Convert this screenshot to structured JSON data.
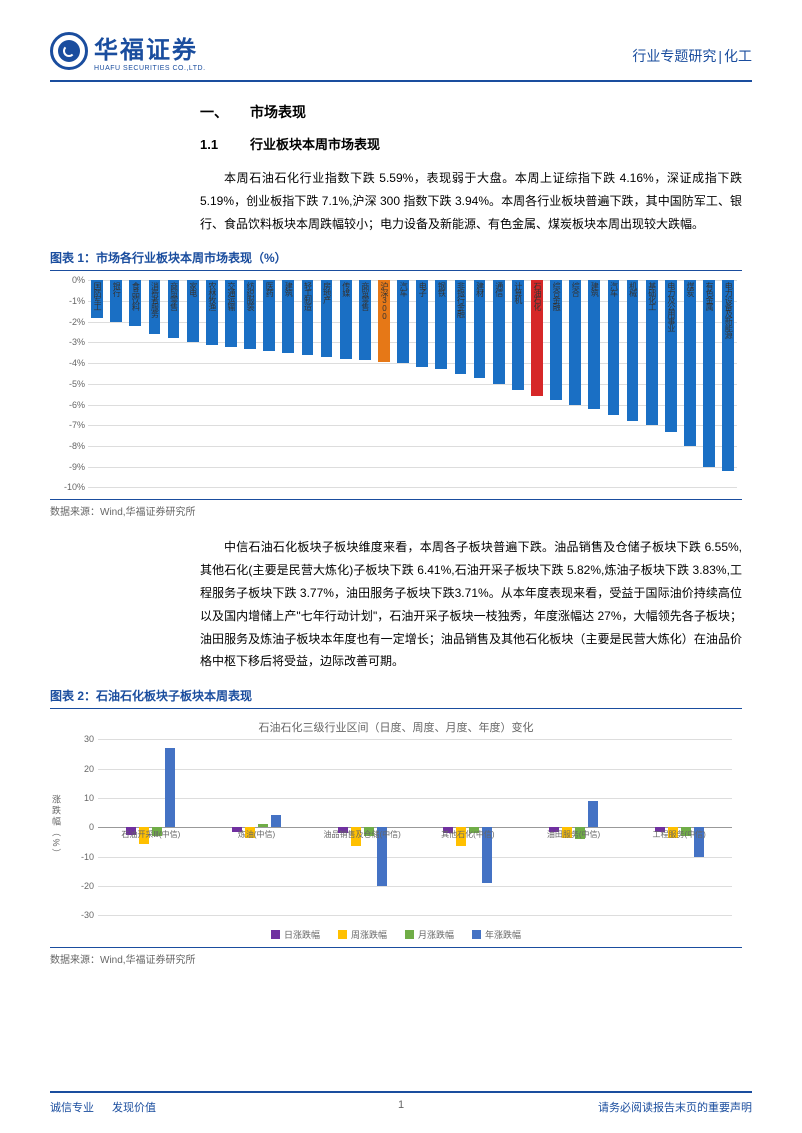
{
  "header": {
    "logo_cn": "华福证券",
    "logo_en": "HUAFU SECURITIES CO.,LTD.",
    "right_text_1": "行业专题研究",
    "right_text_2": "化工"
  },
  "section1": {
    "num": "一、",
    "title": "市场表现"
  },
  "section1_1": {
    "num": "1.1",
    "title": "行业板块本周市场表现"
  },
  "para1": "本周石油石化行业指数下跌 5.59%，表现弱于大盘。本周上证综指下跌 4.16%，深证成指下跌 5.19%，创业板指下跌 7.1%,沪深 300 指数下跌 3.94%。本周各行业板块普遍下跌，其中国防军工、银行、食品饮料板块本周跌幅较小；电力设备及新能源、有色金属、煤炭板块本周出现较大跌幅。",
  "fig1": {
    "title": "图表 1：市场各行业板块本周市场表现（%）",
    "source": "数据来源：Wind,华福证券研究所",
    "ymin": -10,
    "ymax": 0,
    "ystep": 1,
    "bar_color": "#1a6fc4",
    "highlight1_color": "#e67817",
    "highlight2_color": "#d62728",
    "highlight1_label": "沪深300",
    "highlight2_label": "石油石化",
    "items": [
      {
        "label": "国防军工",
        "v": -1.8
      },
      {
        "label": "银行",
        "v": -2.0
      },
      {
        "label": "食品饮料",
        "v": -2.2
      },
      {
        "label": "消费者服务",
        "v": -2.6
      },
      {
        "label": "商贸零售",
        "v": -2.8
      },
      {
        "label": "家电",
        "v": -3.0
      },
      {
        "label": "农林牧渔",
        "v": -3.1
      },
      {
        "label": "交通运输",
        "v": -3.2
      },
      {
        "label": "纺织服装",
        "v": -3.3
      },
      {
        "label": "医药",
        "v": -3.4
      },
      {
        "label": "建筑",
        "v": -3.5
      },
      {
        "label": "轻工制造",
        "v": -3.6
      },
      {
        "label": "房地产",
        "v": -3.7
      },
      {
        "label": "传媒",
        "v": -3.8
      },
      {
        "label": "商贸零售",
        "v": -3.85
      },
      {
        "label": "沪深300",
        "v": -3.94,
        "hl": 1
      },
      {
        "label": "汽车",
        "v": -4.0
      },
      {
        "label": "电子",
        "v": -4.2
      },
      {
        "label": "钢铁",
        "v": -4.3
      },
      {
        "label": "非银行金融",
        "v": -4.5
      },
      {
        "label": "建材",
        "v": -4.7
      },
      {
        "label": "通信",
        "v": -5.0
      },
      {
        "label": "计算机",
        "v": -5.3
      },
      {
        "label": "石油石化",
        "v": -5.59,
        "hl": 2
      },
      {
        "label": "综合金融",
        "v": -5.8
      },
      {
        "label": "综合",
        "v": -6.0
      },
      {
        "label": "建筑",
        "v": -6.2
      },
      {
        "label": "汽车",
        "v": -6.5
      },
      {
        "label": "机械",
        "v": -6.8
      },
      {
        "label": "基础化工",
        "v": -7.0
      },
      {
        "label": "电力及公用事业",
        "v": -7.3
      },
      {
        "label": "煤炭",
        "v": -8.0
      },
      {
        "label": "有色金属",
        "v": -9.0
      },
      {
        "label": "电力设备及新能源",
        "v": -9.2
      }
    ]
  },
  "para2": "中信石油石化板块子板块维度来看，本周各子板块普遍下跌。油品销售及仓储子板块下跌 6.55%,其他石化(主要是民营大炼化)子板块下跌 6.41%,石油开采子板块下跌 5.82%,炼油子板块下跌 3.83%,工程服务子板块下跌 3.77%，油田服务子板块下跌3.71%。从本年度表现来看，受益于国际油价持续高位以及国内增储上产\"七年行动计划\"，石油开采子板块一枝独秀，年度涨幅达 27%，大幅领先各子板块；油田服务及炼油子板块本年度也有一定增长；油品销售及其他石化板块（主要是民营大炼化）在油品价格中枢下移后将受益，边际改善可期。",
  "fig2": {
    "title": "图表 2：石油石化板块子板块本周表现",
    "chart_title": "石油石化三级行业区间（日度、周度、月度、年度）变化",
    "source": "数据来源：Wind,华福证券研究所",
    "ymin": -30,
    "ymax": 30,
    "ystep": 10,
    "y_axis_label": "涨跌幅（%）",
    "colors": {
      "day": "#7030a0",
      "week": "#ffc000",
      "month": "#70ad47",
      "year": "#4472c4"
    },
    "legend": [
      {
        "k": "day",
        "t": "日涨跌幅"
      },
      {
        "k": "week",
        "t": "周涨跌幅"
      },
      {
        "k": "month",
        "t": "月涨跌幅"
      },
      {
        "k": "year",
        "t": "年涨跌幅"
      }
    ],
    "groups": [
      {
        "label": "石油开采Ⅲ(中信)",
        "day": -2.5,
        "week": -5.82,
        "month": -3,
        "year": 27
      },
      {
        "label": "炼油(中信)",
        "day": -1.5,
        "week": -3.83,
        "month": 1,
        "year": 4
      },
      {
        "label": "油品销售及仓储(中信)",
        "day": -2,
        "week": -6.55,
        "month": -3,
        "year": -20
      },
      {
        "label": "其他石化(中信)",
        "day": -2,
        "week": -6.41,
        "month": -2,
        "year": -19
      },
      {
        "label": "油田服务(中信)",
        "day": -1.5,
        "week": -3.71,
        "month": -4,
        "year": 9
      },
      {
        "label": "工程服务(中信)",
        "day": -1.5,
        "week": -3.77,
        "month": -3,
        "year": -10
      }
    ]
  },
  "footer": {
    "left1": "诚信专业",
    "left2": "发现价值",
    "page": "1",
    "right": "请务必阅读报告末页的重要声明"
  }
}
